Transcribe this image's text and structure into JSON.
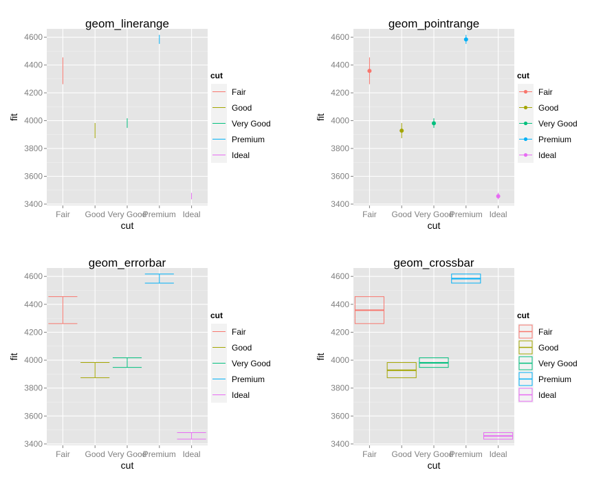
{
  "chart_data": [
    {
      "type": "linerange",
      "title": "geom_linerange",
      "xlabel": "cut",
      "ylabel": "fit",
      "categories": [
        "Fair",
        "Good",
        "Very Good",
        "Premium",
        "Ideal"
      ],
      "ylim": [
        3390,
        4660
      ],
      "yticks": [
        3400,
        3600,
        3800,
        4000,
        4200,
        4400,
        4600
      ],
      "fit": [
        4358,
        3928,
        3981,
        4584,
        3457
      ],
      "lower": [
        4262,
        3874,
        3948,
        4552,
        3434
      ],
      "upper": [
        4455,
        3983,
        4017,
        4617,
        3481
      ],
      "legend": {
        "title": "cut",
        "entries": [
          "Fair",
          "Good",
          "Very Good",
          "Premium",
          "Ideal"
        ]
      }
    },
    {
      "type": "pointrange",
      "title": "geom_pointrange",
      "xlabel": "cut",
      "ylabel": "fit",
      "categories": [
        "Fair",
        "Good",
        "Very Good",
        "Premium",
        "Ideal"
      ],
      "ylim": [
        3390,
        4660
      ],
      "yticks": [
        3400,
        3600,
        3800,
        4000,
        4200,
        4400,
        4600
      ],
      "fit": [
        4358,
        3928,
        3981,
        4584,
        3457
      ],
      "lower": [
        4262,
        3874,
        3948,
        4552,
        3434
      ],
      "upper": [
        4455,
        3983,
        4017,
        4617,
        3481
      ],
      "legend": {
        "title": "cut",
        "entries": [
          "Fair",
          "Good",
          "Very Good",
          "Premium",
          "Ideal"
        ]
      }
    },
    {
      "type": "errorbar",
      "title": "geom_errorbar",
      "xlabel": "cut",
      "ylabel": "fit",
      "categories": [
        "Fair",
        "Good",
        "Very Good",
        "Premium",
        "Ideal"
      ],
      "ylim": [
        3390,
        4660
      ],
      "yticks": [
        3400,
        3600,
        3800,
        4000,
        4200,
        4400,
        4600
      ],
      "fit": [
        4358,
        3928,
        3981,
        4584,
        3457
      ],
      "lower": [
        4262,
        3874,
        3948,
        4552,
        3434
      ],
      "upper": [
        4455,
        3983,
        4017,
        4617,
        3481
      ],
      "legend": {
        "title": "cut",
        "entries": [
          "Fair",
          "Good",
          "Very Good",
          "Premium",
          "Ideal"
        ]
      }
    },
    {
      "type": "crossbar",
      "title": "geom_crossbar",
      "xlabel": "cut",
      "ylabel": "fit",
      "categories": [
        "Fair",
        "Good",
        "Very Good",
        "Premium",
        "Ideal"
      ],
      "ylim": [
        3390,
        4660
      ],
      "yticks": [
        3400,
        3600,
        3800,
        4000,
        4200,
        4400,
        4600
      ],
      "fit": [
        4358,
        3928,
        3981,
        4584,
        3457
      ],
      "lower": [
        4262,
        3874,
        3948,
        4552,
        3434
      ],
      "upper": [
        4455,
        3983,
        4017,
        4617,
        3481
      ],
      "legend": {
        "title": "cut",
        "entries": [
          "Fair",
          "Good",
          "Very Good",
          "Premium",
          "Ideal"
        ]
      }
    }
  ],
  "colors": {
    "series": [
      "#F8766D",
      "#A3A500",
      "#00BF7D",
      "#00B0F6",
      "#E76BF3"
    ],
    "panel_background": "#E5E5E5",
    "grid_major": "#FFFFFF",
    "grid_minor": "#F2F2F2",
    "legend_key_background": "#F2F2F2",
    "tick_text": "#7F7F7F"
  },
  "grid": true,
  "legend_position": "right"
}
